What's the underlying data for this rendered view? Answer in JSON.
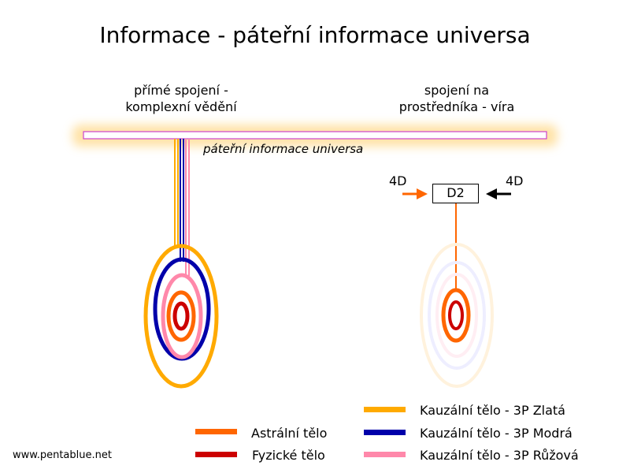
{
  "title": "Informace - páteřní informace universa",
  "left_label": "přímé spojení -\nkomplexní vědění",
  "right_label": "spojení na\nprostředníka - víra",
  "backbone_label": "páteřní informace universa",
  "d2_label": "D2",
  "fourd_left": "4D",
  "fourd_right": "4D",
  "legend": {
    "astral": {
      "label": "Astrální tělo",
      "color": "#ff6600"
    },
    "physical": {
      "label": "Fyzické tělo",
      "color": "#cc0000"
    },
    "causal_gold": {
      "label": "Kauzální tělo - 3P Zlatá",
      "color": "#ffaa00"
    },
    "causal_blue": {
      "label": "Kauzální tělo - 3P Modrá",
      "color": "#0000aa"
    },
    "causal_pink": {
      "label": "Kauzální tělo - 3P Růžová",
      "color": "#ff88aa"
    }
  },
  "footer": "www.pentablue.net"
}
